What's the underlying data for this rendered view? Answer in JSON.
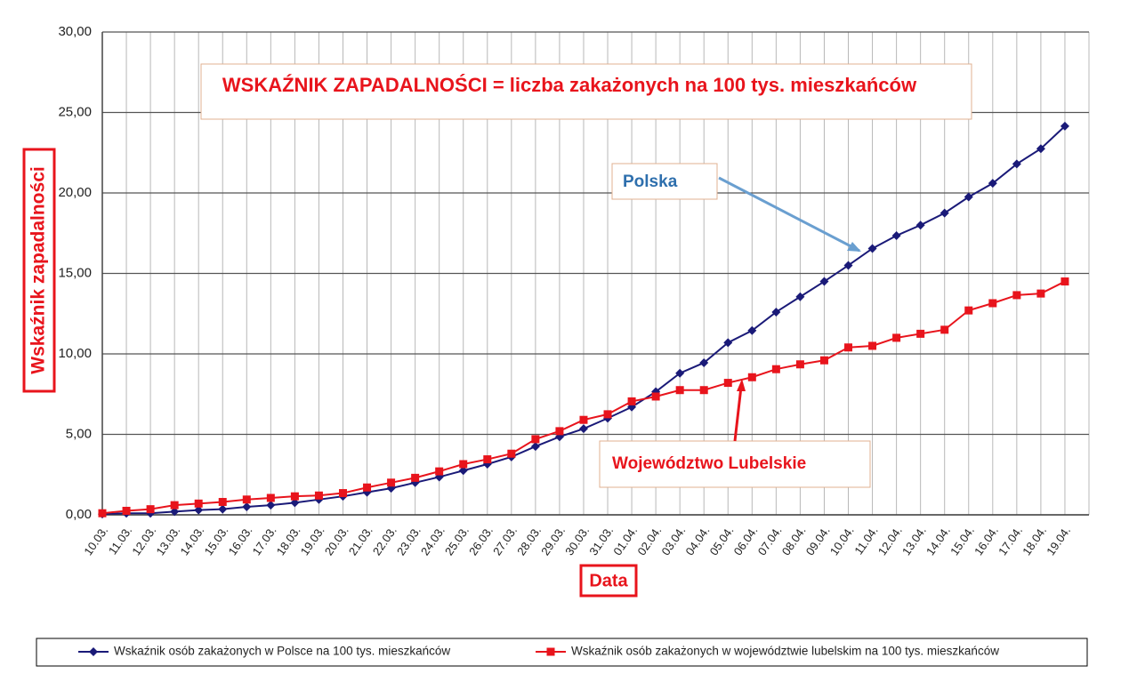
{
  "chart_data": {
    "type": "line",
    "title": "WSKAŹNIK ZAPADALNOŚCI = liczba zakażonych na 100 tys. mieszkańców",
    "xlabel": "Data",
    "ylabel": "Wskaźnik zapadalności",
    "annotations": [
      "Polska",
      "Województwo Lubelskie"
    ],
    "categories": [
      "10.03.",
      "11.03.",
      "12.03.",
      "13.03.",
      "14.03.",
      "15.03.",
      "16.03.",
      "17.03.",
      "18.03.",
      "19.03.",
      "20.03.",
      "21.03.",
      "22.03.",
      "23.03.",
      "24.03.",
      "25.03.",
      "26.03.",
      "27.03.",
      "28.03.",
      "29.03.",
      "30.03.",
      "31.03.",
      "01.04.",
      "02.04.",
      "03.04.",
      "04.04.",
      "05.04.",
      "06.04.",
      "07.04.",
      "08.04.",
      "09.04.",
      "10.04.",
      "11.04.",
      "12.04.",
      "13.04.",
      "14.04.",
      "15.04.",
      "16.04.",
      "17.04.",
      "18.04.",
      "19.04."
    ],
    "series": [
      {
        "name": "Wskaźnik osób zakażonych w Polsce na 100 tys. mieszkańców",
        "color": "#1a1a78",
        "marker": "diamond",
        "values": [
          0.05,
          0.1,
          0.1,
          0.2,
          0.3,
          0.35,
          0.5,
          0.6,
          0.75,
          0.95,
          1.15,
          1.4,
          1.65,
          2.0,
          2.35,
          2.75,
          3.15,
          3.6,
          4.25,
          4.85,
          5.35,
          6.0,
          6.7,
          7.65,
          8.8,
          9.45,
          10.7,
          11.45,
          12.6,
          13.55,
          14.5,
          15.5,
          16.55,
          17.35,
          18.0,
          18.75,
          19.75,
          20.6,
          21.8,
          22.75,
          24.15
        ]
      },
      {
        "name": "Wskaźnik osób zakażonych w województwie lubelskim na 100 tys. mieszkańców",
        "color": "#e8141c",
        "marker": "square",
        "values": [
          0.1,
          0.25,
          0.35,
          0.6,
          0.7,
          0.8,
          0.95,
          1.05,
          1.15,
          1.2,
          1.35,
          1.7,
          2.0,
          2.3,
          2.7,
          3.15,
          3.45,
          3.8,
          4.7,
          5.2,
          5.9,
          6.25,
          7.05,
          7.35,
          7.75,
          7.75,
          8.2,
          8.55,
          9.05,
          9.35,
          9.6,
          10.4,
          10.5,
          11.0,
          11.25,
          11.5,
          12.7,
          13.15,
          13.65,
          13.75,
          14.5
        ]
      }
    ],
    "ylim": [
      0,
      30
    ],
    "yticks": [
      {
        "value": 0,
        "label": "0,00"
      },
      {
        "value": 5,
        "label": "5,00"
      },
      {
        "value": 10,
        "label": "10,00"
      },
      {
        "value": 15,
        "label": "15,00"
      },
      {
        "value": 20,
        "label": "20,00"
      },
      {
        "value": 25,
        "label": "25,00"
      },
      {
        "value": 30,
        "label": "30,00"
      }
    ],
    "grid": true,
    "legend": "bottom"
  }
}
